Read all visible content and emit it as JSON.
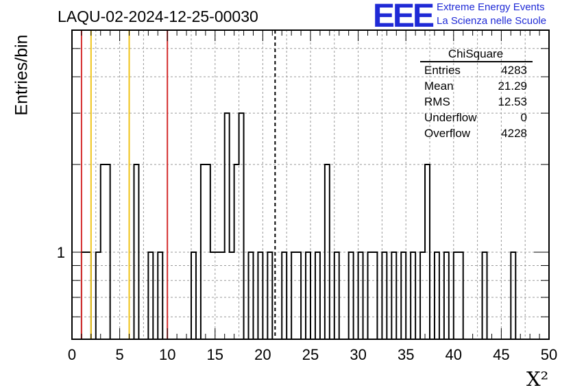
{
  "title": "LAQU-02-2024-12-25-00030",
  "logo": {
    "text": "EEE",
    "line1": "Extreme Energy Events",
    "line2": "La Scienza nelle Scuole"
  },
  "chart_data": {
    "type": "bar",
    "title": "LAQU-02-2024-12-25-00030",
    "xlabel": "X²",
    "ylabel": "Entries/bin",
    "xlim": [
      0,
      50
    ],
    "ylim_log": true,
    "x_ticks": [
      "0",
      "5",
      "10",
      "15",
      "20",
      "25",
      "30",
      "35",
      "40",
      "45",
      "50"
    ],
    "y_ticks": [
      "1"
    ],
    "grid": true,
    "bin_width": 0.5,
    "bins": [
      {
        "x": 1.0,
        "y": 1
      },
      {
        "x": 1.5,
        "y": 1
      },
      {
        "x": 2.5,
        "y": 1
      },
      {
        "x": 3.0,
        "y": 2
      },
      {
        "x": 3.5,
        "y": 2
      },
      {
        "x": 6.5,
        "y": 2
      },
      {
        "x": 8.0,
        "y": 1
      },
      {
        "x": 9.0,
        "y": 1
      },
      {
        "x": 12.5,
        "y": 1
      },
      {
        "x": 13.5,
        "y": 2
      },
      {
        "x": 14.0,
        "y": 2
      },
      {
        "x": 14.5,
        "y": 1
      },
      {
        "x": 15.0,
        "y": 1
      },
      {
        "x": 15.5,
        "y": 1
      },
      {
        "x": 16.0,
        "y": 3
      },
      {
        "x": 16.5,
        "y": 1
      },
      {
        "x": 17.0,
        "y": 2
      },
      {
        "x": 17.5,
        "y": 3
      },
      {
        "x": 18.5,
        "y": 1
      },
      {
        "x": 19.5,
        "y": 1
      },
      {
        "x": 20.5,
        "y": 1
      },
      {
        "x": 22.0,
        "y": 1
      },
      {
        "x": 23.0,
        "y": 1
      },
      {
        "x": 23.5,
        "y": 1
      },
      {
        "x": 24.5,
        "y": 1
      },
      {
        "x": 25.5,
        "y": 1
      },
      {
        "x": 26.5,
        "y": 2
      },
      {
        "x": 27.5,
        "y": 1
      },
      {
        "x": 29.0,
        "y": 1
      },
      {
        "x": 30.0,
        "y": 1
      },
      {
        "x": 31.0,
        "y": 1
      },
      {
        "x": 31.5,
        "y": 1
      },
      {
        "x": 32.5,
        "y": 1
      },
      {
        "x": 33.5,
        "y": 1
      },
      {
        "x": 34.5,
        "y": 1
      },
      {
        "x": 35.5,
        "y": 1
      },
      {
        "x": 36.5,
        "y": 1
      },
      {
        "x": 37.0,
        "y": 2
      },
      {
        "x": 38.0,
        "y": 1
      },
      {
        "x": 39.0,
        "y": 1
      },
      {
        "x": 40.0,
        "y": 1
      },
      {
        "x": 40.5,
        "y": 1
      },
      {
        "x": 43.0,
        "y": 1
      },
      {
        "x": 46.0,
        "y": 1
      }
    ],
    "vlines": [
      {
        "x": 1.0,
        "color": "#d42c2c",
        "style": "solid"
      },
      {
        "x": 2.0,
        "color": "#f0c419",
        "style": "solid"
      },
      {
        "x": 6.0,
        "color": "#f0c419",
        "style": "solid"
      },
      {
        "x": 10.0,
        "color": "#d42c2c",
        "style": "solid"
      },
      {
        "x": 21.29,
        "color": "#000000",
        "style": "dashed"
      }
    ]
  },
  "stats": {
    "title": "ChiSquare",
    "rows": [
      {
        "label": "Entries",
        "value": "4283"
      },
      {
        "label": "Mean",
        "value": "21.29"
      },
      {
        "label": "RMS",
        "value": "12.53"
      },
      {
        "label": "Underflow",
        "value": "0"
      },
      {
        "label": "Overflow",
        "value": "4228"
      }
    ]
  }
}
